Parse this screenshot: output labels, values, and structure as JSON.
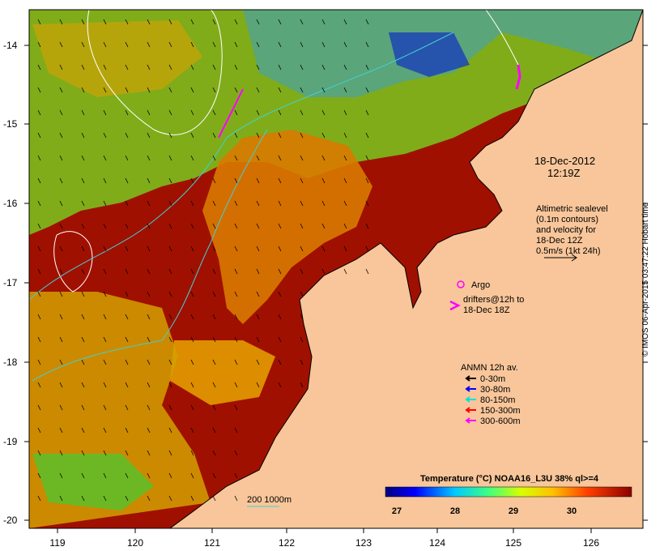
{
  "map": {
    "y_ticks": [
      "-14",
      "-15",
      "-16",
      "-17",
      "-18",
      "-19",
      "-20"
    ],
    "x_ticks": [
      "119",
      "120",
      "121",
      "122",
      "123",
      "124",
      "125",
      "126"
    ],
    "land_color": "#f8c69a",
    "cold_color": "#00008b",
    "warm_color": "#9b0000"
  },
  "annotations": {
    "date": "18-Dec-2012",
    "time": "12:19Z",
    "altimetry": [
      "Altimetric sealevel",
      "(0.1m contours)",
      "and velocity for",
      "18-Dec 12Z",
      "0.5m/s (1kt 24h)"
    ],
    "argo": "Argo",
    "drifters": [
      "drifters@12h to",
      "18-Dec 18Z"
    ]
  },
  "legend": {
    "title": "ANMN 12h av.",
    "items": [
      {
        "label": "0-30m",
        "color": "#000000"
      },
      {
        "label": "30-80m",
        "color": "#0000ff"
      },
      {
        "label": "80-150m",
        "color": "#00e0e0"
      },
      {
        "label": "150-300m",
        "color": "#ff0000"
      },
      {
        "label": "300-600m",
        "color": "#ff00ff"
      }
    ]
  },
  "colorbar": {
    "title": "Temperature (°C) NOAA16_L3U 38% ql>=4",
    "ticks": [
      "27",
      "28",
      "29",
      "30"
    ]
  },
  "bathymetry_legend": "200  1000m",
  "credit": "© IMOS 06-Apr-2015 03:47:22 Hobart time"
}
